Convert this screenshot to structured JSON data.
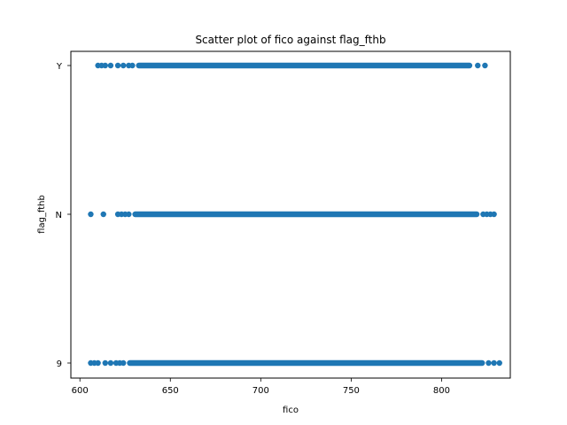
{
  "chart_data": {
    "type": "scatter",
    "title": "Scatter plot of fico against flag_fthb",
    "xlabel": "fico",
    "ylabel": "flag_fthb",
    "xlim": [
      595,
      838
    ],
    "x_ticks": [
      600,
      650,
      700,
      750,
      800
    ],
    "categories": [
      "9",
      "N",
      "Y"
    ],
    "grid": false,
    "marker_color": "#1f77b4",
    "series": [
      {
        "category": "Y",
        "outliers": [
          610,
          612,
          614,
          617,
          621,
          624,
          627,
          629,
          820,
          824
        ],
        "dense_range": [
          631,
          817
        ]
      },
      {
        "category": "N",
        "outliers": [
          606,
          613,
          621,
          623,
          625,
          627,
          823,
          825,
          827,
          829
        ],
        "dense_range": [
          629,
          821
        ]
      },
      {
        "category": "9",
        "outliers": [
          606,
          608,
          610,
          614,
          617,
          620,
          622,
          624,
          826,
          829,
          832
        ],
        "dense_range": [
          626,
          824
        ]
      }
    ]
  }
}
